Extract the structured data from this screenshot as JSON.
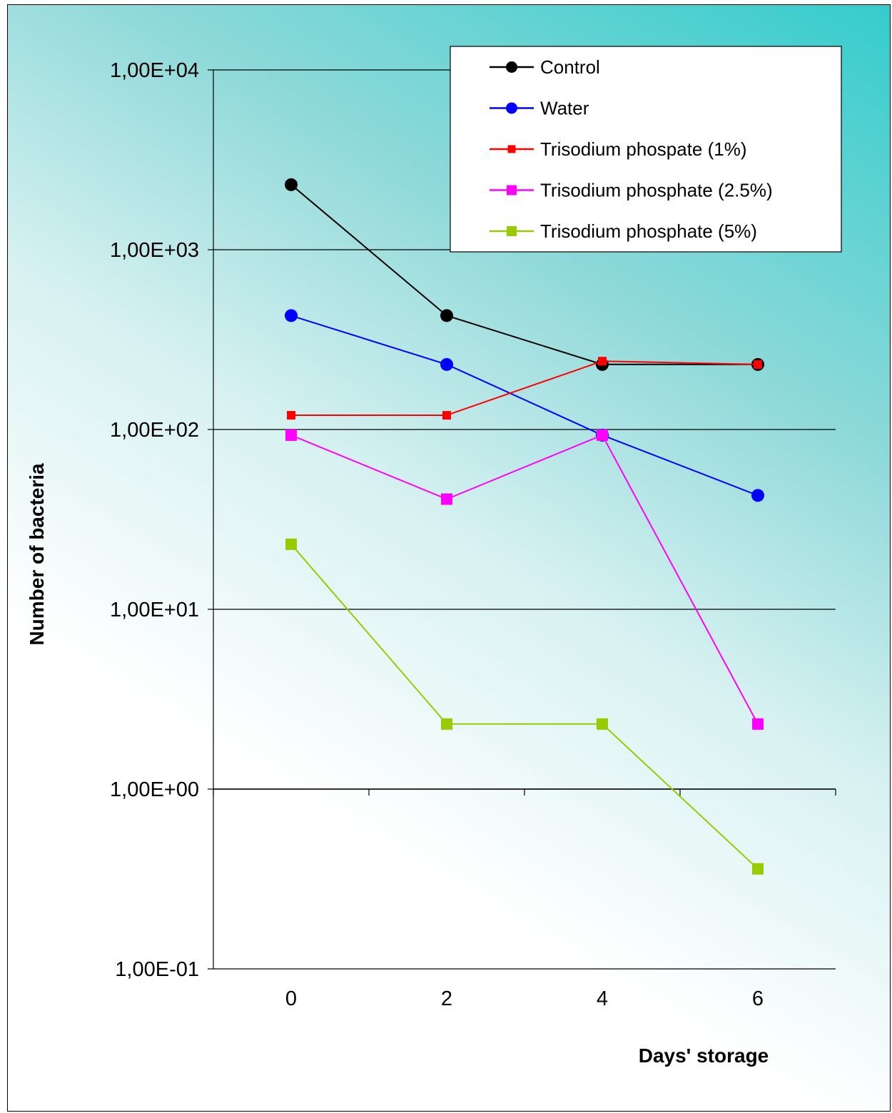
{
  "chart_data": {
    "type": "line",
    "title": "",
    "xlabel": "Days' storage",
    "ylabel": "Number of bacteria",
    "y_scale": "log",
    "ylim": [
      0.1,
      10000
    ],
    "xlim": [
      -1,
      7
    ],
    "x": [
      0,
      2,
      4,
      6
    ],
    "x_tick_labels": [
      "0",
      "2",
      "4",
      "6"
    ],
    "y_ticks": [
      0.1,
      1,
      10,
      100,
      1000,
      10000
    ],
    "y_tick_labels": [
      "1,00E-01",
      "1,00E+00",
      "1,00E+01",
      "1,00E+02",
      "1,00E+03",
      "1,00E+04"
    ],
    "grid": "horizontal",
    "legend_position": "top-right",
    "series": [
      {
        "name": "Control",
        "color": "#000000",
        "marker": "circle",
        "values": [
          2300,
          430,
          230,
          230
        ]
      },
      {
        "name": "Water",
        "color": "#0000ff",
        "marker": "circle",
        "values": [
          430,
          230,
          93,
          43
        ]
      },
      {
        "name": "Trisodium phospate (1%)",
        "color": "#ff0000",
        "marker": "square",
        "values": [
          120,
          120,
          240,
          230
        ]
      },
      {
        "name": "Trisodium phosphate (2.5%)",
        "color": "#ff00ff",
        "marker": "square",
        "values": [
          93,
          41,
          93,
          2.3
        ]
      },
      {
        "name": "Trisodium phosphate (5%)",
        "color": "#99cc00",
        "marker": "square",
        "values": [
          23,
          2.3,
          2.3,
          0.36
        ]
      }
    ]
  }
}
